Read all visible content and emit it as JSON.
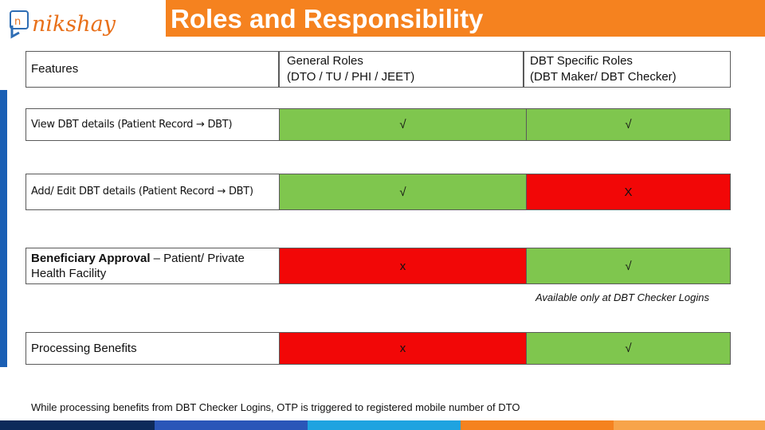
{
  "logo": {
    "text": "nikshay",
    "badge": "n"
  },
  "title": "Roles and Responsibility",
  "table": {
    "headers": {
      "features": "Features",
      "general_line1": "General Roles",
      "general_line2": "(DTO / TU / PHI / JEET)",
      "dbt_line1": "DBT Specific Roles",
      "dbt_line2": "(DBT Maker/ DBT Checker)"
    },
    "rows": [
      {
        "feature": "View DBT details (Patient Record → DBT)",
        "general": "√",
        "dbt": "√"
      },
      {
        "feature": "Add/ Edit DBT details (Patient Record → DBT)",
        "general": "√",
        "dbt": "X"
      },
      {
        "feature_bold": "Beneficiary Approval",
        "feature_rest": " – Patient/ Private Health Facility",
        "general": "x",
        "dbt": "√"
      },
      {
        "feature": "Processing Benefits",
        "general": "x",
        "dbt": "√"
      }
    ]
  },
  "note": "Available only at DBT Checker Logins",
  "footnote": "While processing benefits from DBT Checker Logins, OTP is triggered to registered mobile number of DTO",
  "colors": {
    "accent": "#f5821f",
    "allowed": "#7fc64e",
    "denied": "#f20707",
    "brand_blue": "#1a5fb4"
  }
}
